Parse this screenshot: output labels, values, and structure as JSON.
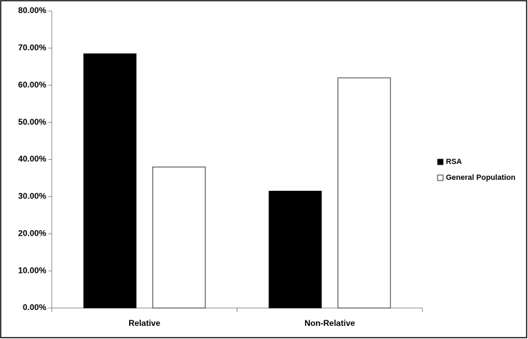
{
  "chart_data": {
    "type": "bar",
    "categories": [
      "Relative",
      "Non-Relative"
    ],
    "series": [
      {
        "name": "RSA",
        "color": "#000000",
        "values": [
          68.5,
          31.5
        ]
      },
      {
        "name": "General Population",
        "color": "#ffffff",
        "values": [
          38,
          62
        ]
      }
    ],
    "ylim": [
      0,
      80
    ],
    "yticks": [
      {
        "value": 0,
        "label": "0.00%"
      },
      {
        "value": 10,
        "label": "10.00%"
      },
      {
        "value": 20,
        "label": "20.00%"
      },
      {
        "value": 30,
        "label": "30.00%"
      },
      {
        "value": 40,
        "label": "40.00%"
      },
      {
        "value": 50,
        "label": "50.00%"
      },
      {
        "value": 60,
        "label": "60.00%"
      },
      {
        "value": 70,
        "label": "70.00%"
      },
      {
        "value": 80,
        "label": "80.00%"
      }
    ],
    "grid": false,
    "legend": "right"
  }
}
